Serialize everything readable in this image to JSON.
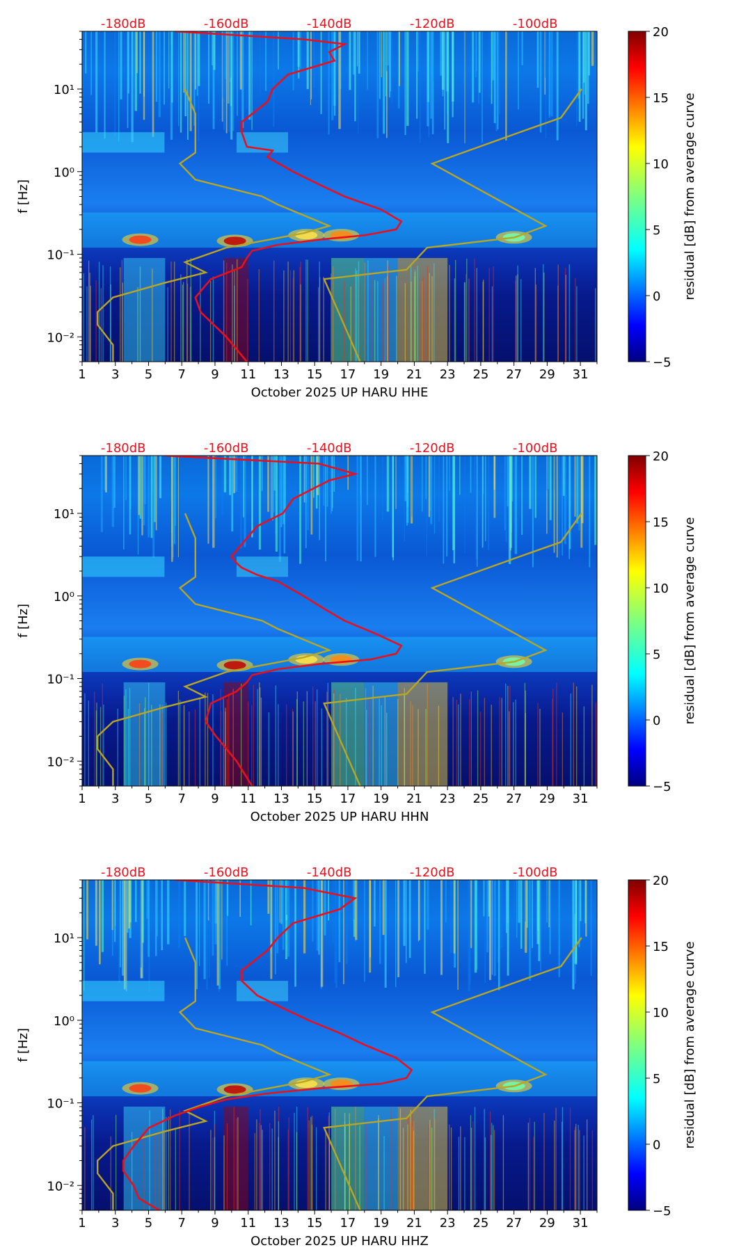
{
  "colors": {
    "nlnm_curve": "#b8a624",
    "psd_curve": "#e8101c",
    "db_label": "#e8101c",
    "axis": "#000000",
    "colormap": [
      "#00007f",
      "#0000ff",
      "#007fff",
      "#00ffff",
      "#7fff7f",
      "#ffff00",
      "#ff7f00",
      "#ff0000",
      "#7f0000"
    ]
  },
  "chart_data": [
    {
      "type": "heatmap",
      "channel": "HHE",
      "xlabel": "October 2025 UP HARU  HHE",
      "ylabel": "f [Hz]",
      "x_ticks": [
        "1",
        "3",
        "5",
        "7",
        "9",
        "11",
        "13",
        "15",
        "17",
        "19",
        "21",
        "23",
        "25",
        "27",
        "29",
        "31"
      ],
      "xlim": [
        1,
        32
      ],
      "y_ticks": [
        "10⁻²",
        "10⁻¹",
        "10⁰",
        "10¹"
      ],
      "ylim_hz": [
        0.005,
        50
      ],
      "db_ticks": [
        "-180dB",
        "-160dB",
        "-140dB",
        "-120dB",
        "-100dB"
      ],
      "db_range": [
        -188,
        -88
      ],
      "colorbar": {
        "label": "residual [dB] from average curve",
        "ticks": [
          "−5",
          "0",
          "5",
          "10",
          "15",
          "20"
        ],
        "range": [
          -5,
          20
        ]
      },
      "psd_curve": [
        [
          50,
          -170
        ],
        [
          40,
          -145
        ],
        [
          35,
          -137
        ],
        [
          28,
          -140
        ],
        [
          22,
          -139
        ],
        [
          15,
          -148
        ],
        [
          10,
          -151
        ],
        [
          7,
          -152
        ],
        [
          5,
          -155
        ],
        [
          4,
          -157
        ],
        [
          3,
          -157
        ],
        [
          2,
          -156
        ],
        [
          1.8,
          -151
        ],
        [
          1.5,
          -152
        ],
        [
          1,
          -147
        ],
        [
          0.7,
          -142
        ],
        [
          0.5,
          -137
        ],
        [
          0.35,
          -130
        ],
        [
          0.25,
          -126
        ],
        [
          0.2,
          -127
        ],
        [
          0.17,
          -133
        ],
        [
          0.15,
          -142
        ],
        [
          0.13,
          -150
        ],
        [
          0.11,
          -155
        ],
        [
          0.09,
          -156
        ],
        [
          0.07,
          -157
        ],
        [
          0.05,
          -163
        ],
        [
          0.03,
          -166
        ],
        [
          0.02,
          -165
        ],
        [
          0.01,
          -160
        ],
        [
          0.005,
          -156
        ]
      ],
      "nlnm_curve": [
        [
          10,
          -168
        ],
        [
          5,
          -166
        ],
        [
          2.5,
          -166
        ],
        [
          1.7,
          -166
        ],
        [
          1.25,
          -169
        ],
        [
          0.8,
          -166
        ],
        [
          0.5,
          -153
        ],
        [
          0.4,
          -150
        ],
        [
          0.22,
          -140
        ],
        [
          0.18,
          -145
        ],
        [
          0.12,
          -160
        ],
        [
          0.08,
          -168
        ],
        [
          0.06,
          -164
        ],
        [
          0.045,
          -172
        ],
        [
          0.03,
          -182
        ],
        [
          0.02,
          -185
        ],
        [
          0.014,
          -185
        ],
        [
          0.008,
          -182
        ],
        [
          0.005,
          -182
        ]
      ],
      "nhnm_curve": [
        [
          10,
          -91
        ],
        [
          4.5,
          -95
        ],
        [
          3,
          -103
        ],
        [
          1.25,
          -120
        ],
        [
          0.22,
          -98
        ],
        [
          0.16,
          -104
        ],
        [
          0.12,
          -121
        ],
        [
          0.065,
          -125
        ],
        [
          0.05,
          -141
        ],
        [
          0.005,
          -134
        ]
      ]
    },
    {
      "type": "heatmap",
      "channel": "HHN",
      "xlabel": "October 2025 UP HARU  HHN",
      "ylabel": "f [Hz]",
      "x_ticks": [
        "1",
        "3",
        "5",
        "7",
        "9",
        "11",
        "13",
        "15",
        "17",
        "19",
        "21",
        "23",
        "25",
        "27",
        "29",
        "31"
      ],
      "xlim": [
        1,
        32
      ],
      "y_ticks": [
        "10⁻²",
        "10⁻¹",
        "10⁰",
        "10¹"
      ],
      "ylim_hz": [
        0.005,
        50
      ],
      "db_ticks": [
        "-180dB",
        "-160dB",
        "-140dB",
        "-120dB",
        "-100dB"
      ],
      "db_range": [
        -188,
        -88
      ],
      "colorbar": {
        "label": "residual [dB] from average curve",
        "ticks": [
          "−5",
          "0",
          "5",
          "10",
          "15",
          "20"
        ],
        "range": [
          -5,
          20
        ]
      },
      "psd_curve": [
        [
          50,
          -172
        ],
        [
          40,
          -142
        ],
        [
          30,
          -135
        ],
        [
          25,
          -140
        ],
        [
          15,
          -147
        ],
        [
          10,
          -149
        ],
        [
          7,
          -154
        ],
        [
          5,
          -156
        ],
        [
          3,
          -159
        ],
        [
          2.5,
          -158
        ],
        [
          2.2,
          -157
        ],
        [
          1.8,
          -154
        ],
        [
          1.5,
          -150
        ],
        [
          1,
          -145
        ],
        [
          0.7,
          -141
        ],
        [
          0.5,
          -137
        ],
        [
          0.35,
          -131
        ],
        [
          0.25,
          -126
        ],
        [
          0.2,
          -127
        ],
        [
          0.17,
          -132
        ],
        [
          0.15,
          -142
        ],
        [
          0.13,
          -150
        ],
        [
          0.11,
          -155
        ],
        [
          0.09,
          -156
        ],
        [
          0.07,
          -158
        ],
        [
          0.05,
          -163
        ],
        [
          0.03,
          -164
        ],
        [
          0.02,
          -162
        ],
        [
          0.01,
          -158
        ],
        [
          0.005,
          -155
        ]
      ],
      "nlnm_curve": [
        [
          10,
          -168
        ],
        [
          5,
          -166
        ],
        [
          2.5,
          -166
        ],
        [
          1.7,
          -166
        ],
        [
          1.25,
          -169
        ],
        [
          0.8,
          -166
        ],
        [
          0.5,
          -153
        ],
        [
          0.4,
          -150
        ],
        [
          0.22,
          -140
        ],
        [
          0.18,
          -145
        ],
        [
          0.12,
          -160
        ],
        [
          0.08,
          -168
        ],
        [
          0.06,
          -164
        ],
        [
          0.045,
          -172
        ],
        [
          0.03,
          -182
        ],
        [
          0.02,
          -185
        ],
        [
          0.014,
          -185
        ],
        [
          0.008,
          -182
        ],
        [
          0.005,
          -182
        ]
      ],
      "nhnm_curve": [
        [
          10,
          -91
        ],
        [
          4.5,
          -95
        ],
        [
          3,
          -103
        ],
        [
          1.25,
          -120
        ],
        [
          0.22,
          -98
        ],
        [
          0.16,
          -104
        ],
        [
          0.12,
          -121
        ],
        [
          0.065,
          -125
        ],
        [
          0.05,
          -141
        ],
        [
          0.005,
          -134
        ]
      ]
    },
    {
      "type": "heatmap",
      "channel": "HHZ",
      "xlabel": "October 2025 UP HARU  HHZ",
      "ylabel": "f [Hz]",
      "x_ticks": [
        "1",
        "3",
        "5",
        "7",
        "9",
        "11",
        "13",
        "15",
        "17",
        "19",
        "21",
        "23",
        "25",
        "27",
        "29",
        "31"
      ],
      "xlim": [
        1,
        32
      ],
      "y_ticks": [
        "10⁻²",
        "10⁻¹",
        "10⁰",
        "10¹"
      ],
      "ylim_hz": [
        0.005,
        50
      ],
      "db_ticks": [
        "-180dB",
        "-160dB",
        "-140dB",
        "-120dB",
        "-100dB"
      ],
      "db_range": [
        -188,
        -88
      ],
      "colorbar": {
        "label": "residual [dB] from average curve",
        "ticks": [
          "−5",
          "0",
          "5",
          "10",
          "15",
          "20"
        ],
        "range": [
          -5,
          20
        ]
      },
      "psd_curve": [
        [
          50,
          -170
        ],
        [
          40,
          -145
        ],
        [
          30,
          -135
        ],
        [
          22,
          -138
        ],
        [
          15,
          -147
        ],
        [
          10,
          -150
        ],
        [
          7,
          -152
        ],
        [
          5,
          -155
        ],
        [
          4,
          -157
        ],
        [
          3,
          -157
        ],
        [
          2,
          -154
        ],
        [
          1.5,
          -150
        ],
        [
          1,
          -144
        ],
        [
          0.7,
          -138
        ],
        [
          0.5,
          -133
        ],
        [
          0.35,
          -127
        ],
        [
          0.25,
          -124
        ],
        [
          0.2,
          -125
        ],
        [
          0.17,
          -130
        ],
        [
          0.15,
          -142
        ],
        [
          0.13,
          -152
        ],
        [
          0.11,
          -160
        ],
        [
          0.09,
          -165
        ],
        [
          0.07,
          -170
        ],
        [
          0.05,
          -175
        ],
        [
          0.03,
          -178
        ],
        [
          0.02,
          -180
        ],
        [
          0.015,
          -180
        ],
        [
          0.01,
          -178
        ],
        [
          0.007,
          -177
        ],
        [
          0.005,
          -173
        ]
      ],
      "nlnm_curve": [
        [
          10,
          -168
        ],
        [
          5,
          -166
        ],
        [
          2.5,
          -166
        ],
        [
          1.7,
          -166
        ],
        [
          1.25,
          -169
        ],
        [
          0.8,
          -166
        ],
        [
          0.5,
          -153
        ],
        [
          0.4,
          -150
        ],
        [
          0.22,
          -140
        ],
        [
          0.18,
          -145
        ],
        [
          0.12,
          -160
        ],
        [
          0.08,
          -168
        ],
        [
          0.06,
          -164
        ],
        [
          0.045,
          -172
        ],
        [
          0.03,
          -182
        ],
        [
          0.02,
          -185
        ],
        [
          0.014,
          -185
        ],
        [
          0.008,
          -182
        ],
        [
          0.005,
          -182
        ]
      ],
      "nhnm_curve": [
        [
          10,
          -91
        ],
        [
          4.5,
          -95
        ],
        [
          3,
          -103
        ],
        [
          1.25,
          -120
        ],
        [
          0.22,
          -98
        ],
        [
          0.16,
          -104
        ],
        [
          0.12,
          -121
        ],
        [
          0.065,
          -125
        ],
        [
          0.05,
          -141
        ],
        [
          0.005,
          -134
        ]
      ]
    }
  ]
}
